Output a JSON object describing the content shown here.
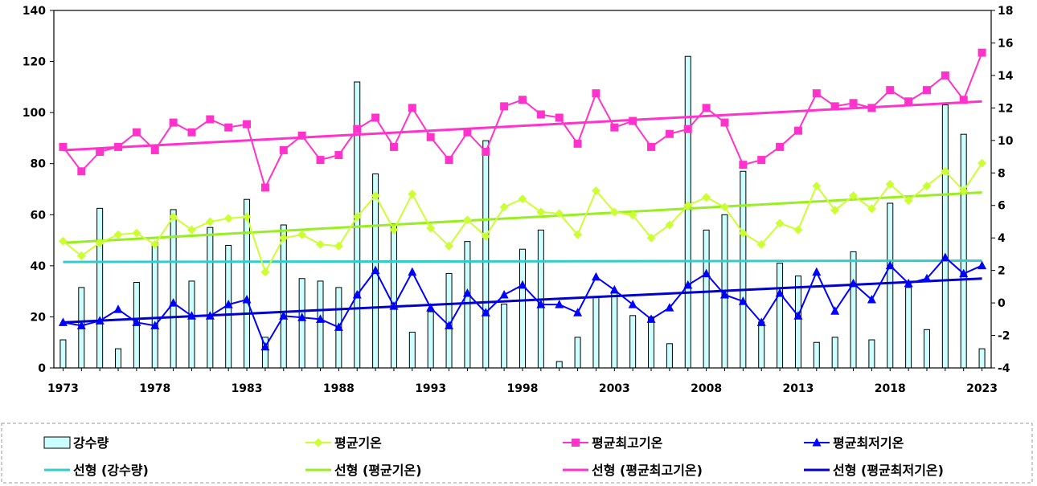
{
  "chart_data": {
    "type": "bar+line",
    "x": [
      1973,
      1974,
      1975,
      1976,
      1977,
      1978,
      1979,
      1980,
      1981,
      1982,
      1983,
      1984,
      1985,
      1986,
      1987,
      1988,
      1989,
      1990,
      1991,
      1992,
      1993,
      1994,
      1995,
      1996,
      1997,
      1998,
      1999,
      2000,
      2001,
      2002,
      2003,
      2004,
      2005,
      2006,
      2007,
      2008,
      2009,
      2010,
      2011,
      2012,
      2013,
      2014,
      2015,
      2016,
      2017,
      2018,
      2019,
      2020,
      2021,
      2022,
      2023
    ],
    "xticks": [
      "1973",
      "1978",
      "1983",
      "1988",
      "1993",
      "1998",
      "2003",
      "2008",
      "2013",
      "2018",
      "2023"
    ],
    "y_left": {
      "range": [
        0,
        140
      ],
      "ticks": [
        "0",
        "20",
        "40",
        "60",
        "80",
        "100",
        "120",
        "140"
      ]
    },
    "y_right": {
      "range": [
        -4,
        18
      ],
      "ticks": [
        "-4",
        "-2",
        "0",
        "2",
        "4",
        "6",
        "8",
        "10",
        "12",
        "14",
        "16",
        "18"
      ]
    },
    "grid": false,
    "legend_position": "bottom",
    "series": [
      {
        "name": "강수량",
        "axis": "left",
        "kind": "bar",
        "color": "#ccffff",
        "values": [
          11,
          31.5,
          62.5,
          7.5,
          33.5,
          49,
          62,
          34,
          55,
          48,
          66,
          12,
          56,
          35,
          34,
          31.5,
          112,
          76,
          56.5,
          14,
          22,
          37,
          49.5,
          89,
          25,
          46.5,
          54,
          2.5,
          12,
          28,
          30,
          20.5,
          20,
          9.5,
          122,
          54,
          60,
          77,
          18,
          41,
          36,
          10,
          12,
          45.5,
          11,
          64.5,
          31.5,
          15,
          103,
          91.5,
          7.5
        ]
      },
      {
        "name": "평균기온",
        "axis": "right",
        "kind": "line",
        "marker": "diamond",
        "color": "#ccff33",
        "values": [
          3.8,
          2.9,
          3.7,
          4.2,
          4.3,
          3.6,
          5.3,
          4.5,
          5,
          5.2,
          5.3,
          1.9,
          4,
          4.2,
          3.6,
          3.5,
          5.3,
          6.6,
          4.5,
          6.7,
          4.6,
          3.5,
          5.1,
          4.1,
          5.9,
          6.4,
          5.6,
          5.5,
          4.2,
          6.9,
          5.6,
          5.4,
          4,
          4.8,
          6,
          6.5,
          5.9,
          4.3,
          3.6,
          4.9,
          4.5,
          7.2,
          5.7,
          6.6,
          5.8,
          7.3,
          6.3,
          7.2,
          8.1,
          6.9,
          8.6
        ]
      },
      {
        "name": "평균최고기온",
        "axis": "right",
        "kind": "line",
        "marker": "square",
        "color": "#ff33cc",
        "values": [
          9.6,
          8.1,
          9.3,
          9.6,
          10.5,
          9.4,
          11.1,
          10.5,
          11.3,
          10.8,
          11,
          7.1,
          9.4,
          10.3,
          8.8,
          9.1,
          10.7,
          11.4,
          9.6,
          12,
          10.2,
          8.8,
          10.5,
          9.3,
          12.1,
          12.5,
          11.6,
          11.4,
          9.8,
          12.9,
          10.8,
          11.2,
          9.6,
          10.4,
          10.7,
          12,
          11.1,
          8.5,
          8.8,
          9.6,
          10.6,
          12.9,
          12.1,
          12.3,
          12,
          13.1,
          12.4,
          13.1,
          14,
          12.5,
          15.4
        ]
      },
      {
        "name": "평균최저기온",
        "axis": "right",
        "kind": "line",
        "marker": "triangle",
        "color": "#0000ff",
        "values": [
          -1.2,
          -1.4,
          -1.1,
          -0.4,
          -1.2,
          -1.4,
          0,
          -0.8,
          -0.8,
          -0.1,
          0.2,
          -2.7,
          -0.8,
          -0.9,
          -1,
          -1.5,
          0.5,
          2,
          -0.2,
          1.9,
          -0.3,
          -1.4,
          0.6,
          -0.6,
          0.5,
          1.1,
          -0.1,
          -0.1,
          -0.6,
          1.6,
          0.8,
          -0.1,
          -1,
          -0.3,
          1.1,
          1.8,
          0.5,
          0.1,
          -1.2,
          0.6,
          -0.8,
          1.9,
          -0.5,
          1.2,
          0.2,
          2.3,
          1.2,
          1.5,
          2.8,
          1.8,
          2.3
        ]
      }
    ],
    "trendlines": [
      {
        "name": "선형 (강수량)",
        "axis": "left",
        "color": "#33cccc",
        "from": [
          1973,
          41.5
        ],
        "to": [
          2023,
          42
        ]
      },
      {
        "name": "선형 (평균기온)",
        "axis": "right",
        "color": "#99ee22",
        "from": [
          1973,
          3.7
        ],
        "to": [
          2023,
          6.8
        ]
      },
      {
        "name": "선형 (평균최고기온)",
        "axis": "right",
        "color": "#ff33cc",
        "from": [
          1973,
          9.4
        ],
        "to": [
          2023,
          12.4
        ]
      },
      {
        "name": "선형 (평균최저기온)",
        "axis": "right",
        "color": "#0000cc",
        "from": [
          1973,
          -1.2
        ],
        "to": [
          2023,
          1.5
        ]
      }
    ]
  }
}
